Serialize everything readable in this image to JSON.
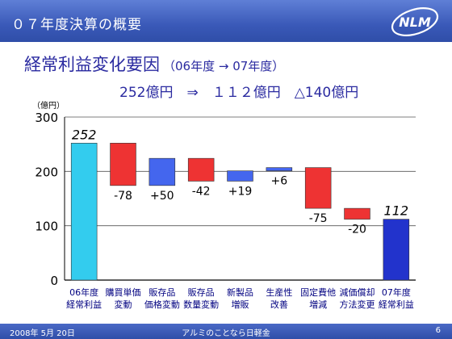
{
  "header": {
    "title": "０７年度決算の概要",
    "logo_text": "NLM"
  },
  "slide": {
    "heading": "経常利益変化要因",
    "heading_sub": "（06年度 → 07年度）",
    "summary": "252億円　⇒　１１２億円　△140億円",
    "unit": "（億円）"
  },
  "chart_data": {
    "type": "waterfall",
    "ylim": [
      0,
      300
    ],
    "yticks": [
      0,
      100,
      200,
      300
    ],
    "grid": true,
    "categories": [
      [
        "06年度",
        "経常利益"
      ],
      [
        "購買単価",
        "変動"
      ],
      [
        "販存品",
        "価格変動"
      ],
      [
        "販存品",
        "数量変動"
      ],
      [
        "新製品",
        "増販"
      ],
      [
        "生産性",
        "改善"
      ],
      [
        "固定費他",
        "増減"
      ],
      [
        "減価償却",
        "方法変更"
      ],
      [
        "07年度",
        "経常利益"
      ]
    ],
    "steps": [
      {
        "kind": "total",
        "value": 252,
        "label": "252",
        "color": "#33ccee"
      },
      {
        "kind": "delta",
        "value": -78,
        "label": "-78",
        "color": "#ee3333"
      },
      {
        "kind": "delta",
        "value": 50,
        "label": "+50",
        "color": "#4466ee"
      },
      {
        "kind": "delta",
        "value": -42,
        "label": "-42",
        "color": "#ee3333"
      },
      {
        "kind": "delta",
        "value": 19,
        "label": "+19",
        "color": "#4466ee"
      },
      {
        "kind": "delta",
        "value": 6,
        "label": "+6",
        "color": "#4466ee"
      },
      {
        "kind": "delta",
        "value": -75,
        "label": "-75",
        "color": "#ee3333"
      },
      {
        "kind": "delta",
        "value": -20,
        "label": "-20",
        "color": "#ee3333"
      },
      {
        "kind": "total",
        "value": 112,
        "label": "112",
        "color": "#2233cc"
      }
    ]
  },
  "footer": {
    "date": "2008年 5月 20日",
    "company": "アルミのことなら日軽金",
    "page": "6"
  }
}
